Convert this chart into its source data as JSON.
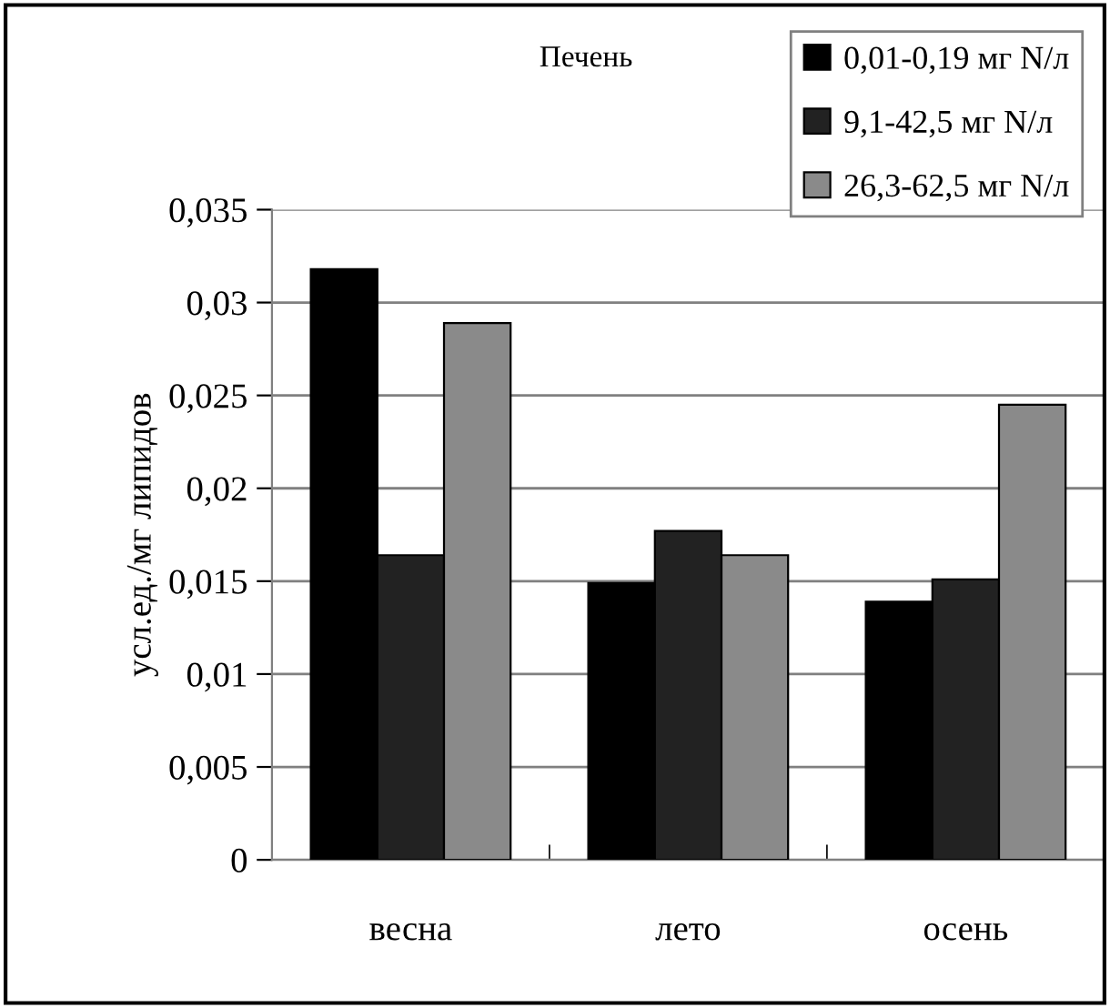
{
  "chart_data": {
    "type": "bar",
    "title": "Печень",
    "ylabel": "усл.ед./мг липидов",
    "categories": [
      "весна",
      "лето",
      "осень"
    ],
    "series": [
      {
        "name": "0,01-0,19 мг N/л",
        "color": "#000000",
        "values": [
          0.0318,
          0.0149,
          0.0139
        ]
      },
      {
        "name": "9,1-42,5 мг N/л",
        "color": "#222222",
        "values": [
          0.0164,
          0.0177,
          0.0151
        ]
      },
      {
        "name": "26,3-62,5 мг N/л",
        "color": "#8a8a8a",
        "values": [
          0.0289,
          0.0164,
          0.0245
        ]
      }
    ],
    "ylim": [
      0,
      0.035
    ],
    "yticks": [
      {
        "value": 0,
        "label": "0"
      },
      {
        "value": 0.005,
        "label": "0,005"
      },
      {
        "value": 0.01,
        "label": "0,01"
      },
      {
        "value": 0.015,
        "label": "0,015"
      },
      {
        "value": 0.02,
        "label": "0,02"
      },
      {
        "value": 0.025,
        "label": "0,025"
      },
      {
        "value": 0.03,
        "label": "0,03"
      },
      {
        "value": 0.035,
        "label": "0,035"
      }
    ],
    "grid": "y",
    "legend": "top right"
  }
}
